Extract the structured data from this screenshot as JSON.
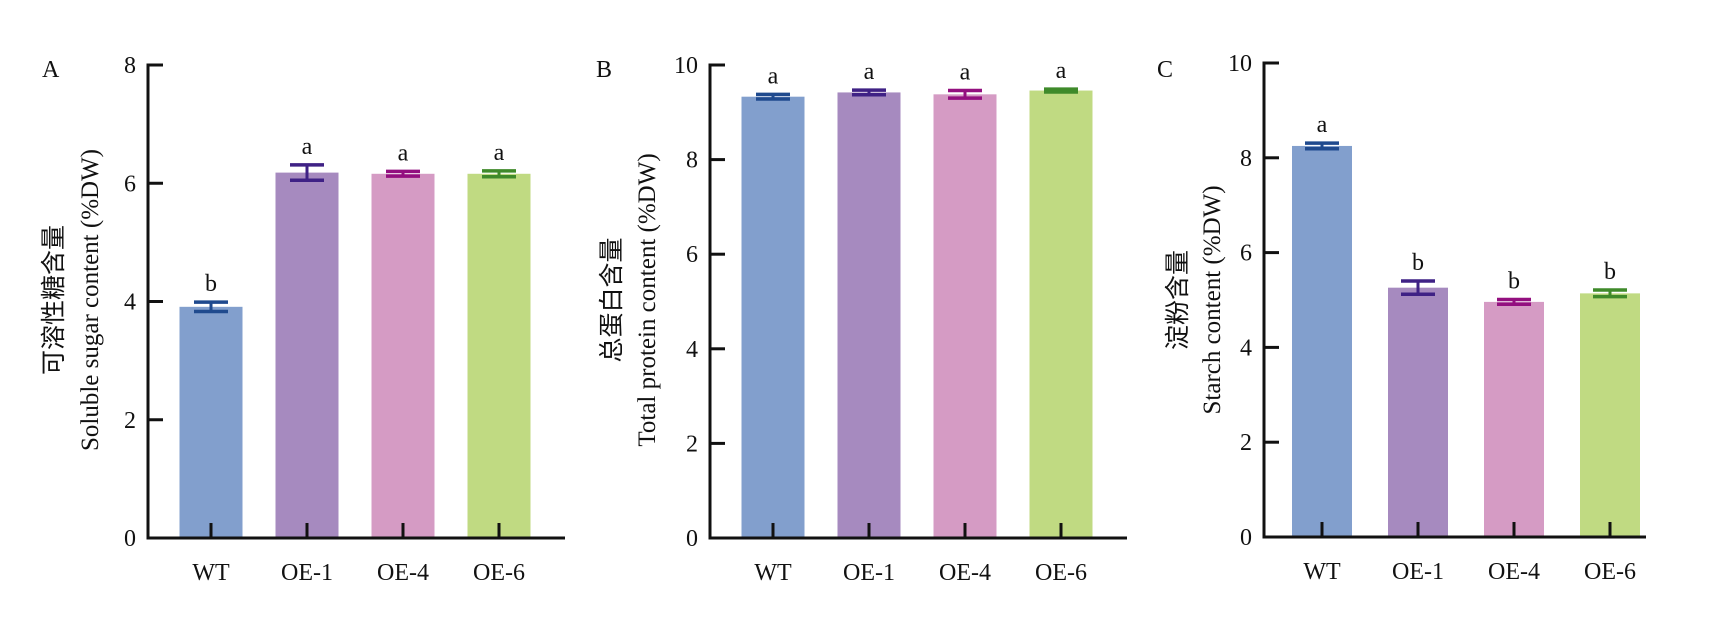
{
  "figure": {
    "categories": [
      "WT",
      "OE-1",
      "OE-4",
      "OE-6"
    ],
    "bar_colors": [
      "#829fcd",
      "#a68abf",
      "#d59bc4",
      "#c0da82"
    ],
    "error_colors": [
      "#1f4a8e",
      "#3f2185",
      "#930f7f",
      "#3f8a2a"
    ]
  },
  "chart_data": [
    {
      "type": "bar",
      "panel": "A",
      "title": "",
      "ylabel_cn": "可溶性糖含量",
      "ylabel": "Soluble sugar content (%DW)",
      "xlabel": "",
      "categories": [
        "WT",
        "OE-1",
        "OE-4",
        "OE-6"
      ],
      "values": [
        3.91,
        6.18,
        6.16,
        6.16
      ],
      "errors": [
        0.08,
        0.13,
        0.04,
        0.05
      ],
      "significance": [
        "b",
        "a",
        "a",
        "a"
      ],
      "ylim": [
        0,
        8
      ],
      "yticks": [
        0,
        2,
        4,
        6,
        8
      ],
      "grid": false
    },
    {
      "type": "bar",
      "panel": "B",
      "title": "",
      "ylabel_cn": "总蛋白含量",
      "ylabel": "Total protein content (%DW)",
      "xlabel": "",
      "categories": [
        "WT",
        "OE-1",
        "OE-4",
        "OE-6"
      ],
      "values": [
        9.33,
        9.42,
        9.38,
        9.46
      ],
      "errors": [
        0.05,
        0.05,
        0.08,
        0.03
      ],
      "significance": [
        "a",
        "a",
        "a",
        "a"
      ],
      "ylim": [
        0,
        10
      ],
      "yticks": [
        0,
        2,
        4,
        6,
        8,
        10
      ],
      "grid": false
    },
    {
      "type": "bar",
      "panel": "C",
      "title": "",
      "ylabel_cn": "淀粉含量",
      "ylabel": "Starch content (%DW)",
      "xlabel": "",
      "categories": [
        "WT",
        "OE-1",
        "OE-4",
        "OE-6"
      ],
      "values": [
        8.25,
        5.26,
        4.96,
        5.14
      ],
      "errors": [
        0.06,
        0.14,
        0.05,
        0.07
      ],
      "significance": [
        "a",
        "b",
        "b",
        "b"
      ],
      "ylim": [
        0,
        10
      ],
      "yticks": [
        0,
        2,
        4,
        6,
        8,
        10
      ],
      "grid": false
    }
  ]
}
